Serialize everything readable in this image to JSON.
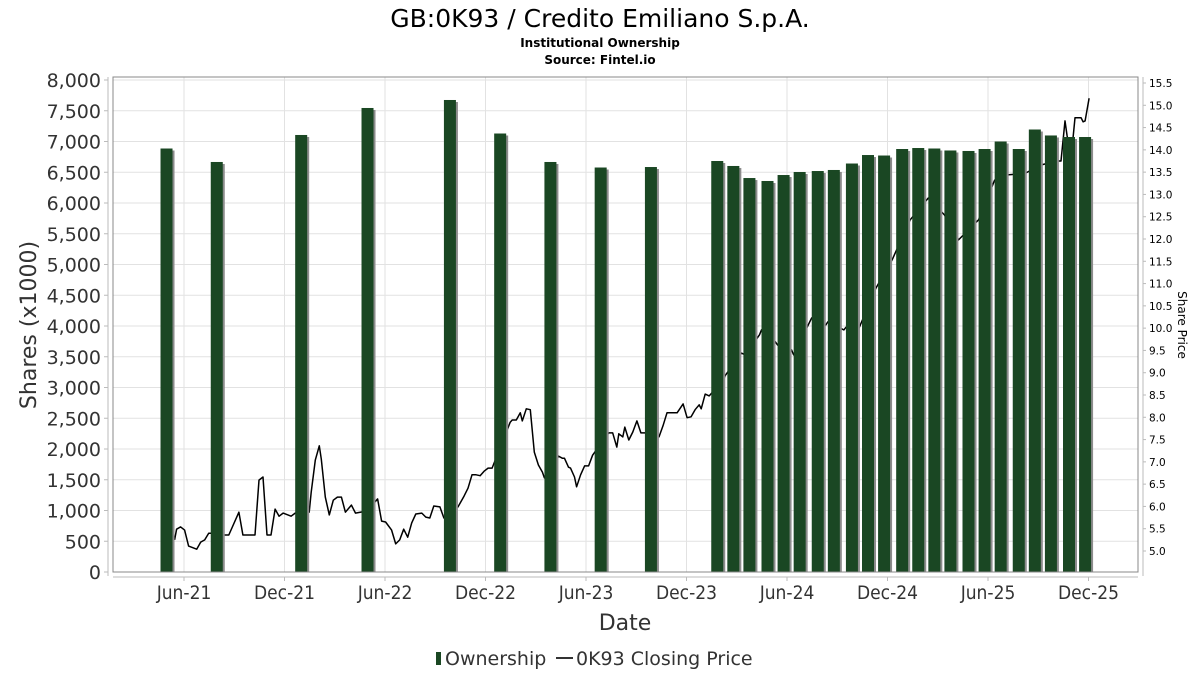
{
  "chart_data": {
    "type": "bar+line",
    "title": "GB:0K93 / Credito Emiliano S.p.A.",
    "subtitle": "Institutional Ownership",
    "source": "Source: Fintel.io",
    "xlabel": "Date",
    "ylabel": "Shares (x1000)",
    "y2label": "Share Price",
    "ylim": [
      0,
      8000
    ],
    "y2lim": [
      4.6,
      15.6
    ],
    "grid": true,
    "legend_position": "bottom",
    "x_ticks": [
      {
        "label": "Jun-21",
        "t": 2021.417
      },
      {
        "label": "Dec-21",
        "t": 2021.917
      },
      {
        "label": "Jun-22",
        "t": 2022.417
      },
      {
        "label": "Dec-22",
        "t": 2022.917
      },
      {
        "label": "Jun-23",
        "t": 2023.417
      },
      {
        "label": "Dec-23",
        "t": 2023.917
      },
      {
        "label": "Jun-24",
        "t": 2024.417
      },
      {
        "label": "Dec-24",
        "t": 2024.917
      },
      {
        "label": "Jun-25",
        "t": 2025.417
      },
      {
        "label": "Dec-25",
        "t": 2025.917
      }
    ],
    "x_range": [
      2020.77,
      2026.17
    ],
    "y_ticks": [
      {
        "label": "0",
        "v": 0
      },
      {
        "label": "500",
        "v": 500
      },
      {
        "label": "1,000",
        "v": 1000
      },
      {
        "label": "1,500",
        "v": 1500
      },
      {
        "label": "2,000",
        "v": 2000
      },
      {
        "label": "2,500",
        "v": 2500
      },
      {
        "label": "3,000",
        "v": 3000
      },
      {
        "label": "3,500",
        "v": 3500
      },
      {
        "label": "4,000",
        "v": 4000
      },
      {
        "label": "4,500",
        "v": 4500
      },
      {
        "label": "5,000",
        "v": 5000
      },
      {
        "label": "5,500",
        "v": 5500
      },
      {
        "label": "6,000",
        "v": 6000
      },
      {
        "label": "6,500",
        "v": 6500
      },
      {
        "label": "7,000",
        "v": 7000
      },
      {
        "label": "7,500",
        "v": 7500
      },
      {
        "label": "8,000",
        "v": 8000
      }
    ],
    "y2_ticks": [
      {
        "label": "5.0",
        "v": 5.0
      },
      {
        "label": "5.5",
        "v": 5.5
      },
      {
        "label": "6.0",
        "v": 6.0
      },
      {
        "label": "6.5",
        "v": 6.5
      },
      {
        "label": "7.0",
        "v": 7.0
      },
      {
        "label": "7.5",
        "v": 7.5
      },
      {
        "label": "8.0",
        "v": 8.0
      },
      {
        "label": "8.5",
        "v": 8.5
      },
      {
        "label": "9.0",
        "v": 9.0
      },
      {
        "label": "9.5",
        "v": 9.5
      },
      {
        "label": "10.0",
        "v": 10.0
      },
      {
        "label": "10.5",
        "v": 10.5
      },
      {
        "label": "11.0",
        "v": 11.0
      },
      {
        "label": "11.5",
        "v": 11.5
      },
      {
        "label": "12.0",
        "v": 12.0
      },
      {
        "label": "12.5",
        "v": 12.5
      },
      {
        "label": "13.0",
        "v": 13.0
      },
      {
        "label": "13.5",
        "v": 13.5
      },
      {
        "label": "14.0",
        "v": 14.0
      },
      {
        "label": "14.5",
        "v": 14.5
      },
      {
        "label": "15.0",
        "v": 15.0
      },
      {
        "label": "15.5",
        "v": 15.5
      }
    ],
    "series": [
      {
        "name": "Ownership",
        "type": "bar",
        "color": "#1a4723",
        "shadow_color": "#8c8c8c",
        "points": [
          {
            "t": 2021.33,
            "v": 6886
          },
          {
            "t": 2021.58,
            "v": 6667
          },
          {
            "t": 2022.0,
            "v": 7106
          },
          {
            "t": 2022.33,
            "v": 7545
          },
          {
            "t": 2022.74,
            "v": 7675
          },
          {
            "t": 2022.99,
            "v": 7130
          },
          {
            "t": 2023.24,
            "v": 6667
          },
          {
            "t": 2023.49,
            "v": 6577
          },
          {
            "t": 2023.74,
            "v": 6585
          },
          {
            "t": 2024.07,
            "v": 6683
          },
          {
            "t": 2024.15,
            "v": 6602
          },
          {
            "t": 2024.23,
            "v": 6406
          },
          {
            "t": 2024.32,
            "v": 6358
          },
          {
            "t": 2024.4,
            "v": 6455
          },
          {
            "t": 2024.48,
            "v": 6504
          },
          {
            "t": 2024.57,
            "v": 6520
          },
          {
            "t": 2024.65,
            "v": 6537
          },
          {
            "t": 2024.74,
            "v": 6642
          },
          {
            "t": 2024.82,
            "v": 6780
          },
          {
            "t": 2024.9,
            "v": 6772
          },
          {
            "t": 2024.99,
            "v": 6878
          },
          {
            "t": 2025.07,
            "v": 6894
          },
          {
            "t": 2025.15,
            "v": 6886
          },
          {
            "t": 2025.23,
            "v": 6854
          },
          {
            "t": 2025.32,
            "v": 6846
          },
          {
            "t": 2025.4,
            "v": 6878
          },
          {
            "t": 2025.48,
            "v": 7000
          },
          {
            "t": 2025.57,
            "v": 6878
          },
          {
            "t": 2025.65,
            "v": 7195
          },
          {
            "t": 2025.73,
            "v": 7098
          },
          {
            "t": 2025.82,
            "v": 7073
          },
          {
            "t": 2025.9,
            "v": 7073
          }
        ]
      },
      {
        "name": "0K93 Closing Price",
        "type": "line",
        "color": "#000000",
        "points": [
          {
            "t": 2021.37,
            "v": 5.25
          },
          {
            "t": 2021.38,
            "v": 5.49
          },
          {
            "t": 2021.4,
            "v": 5.54
          },
          {
            "t": 2021.42,
            "v": 5.47
          },
          {
            "t": 2021.44,
            "v": 5.11
          },
          {
            "t": 2021.48,
            "v": 5.04
          },
          {
            "t": 2021.5,
            "v": 5.2
          },
          {
            "t": 2021.52,
            "v": 5.25
          },
          {
            "t": 2021.54,
            "v": 5.4
          },
          {
            "t": 2021.56,
            "v": 5.4
          },
          {
            "t": 2021.62,
            "v": 5.36
          },
          {
            "t": 2021.64,
            "v": 5.36
          },
          {
            "t": 2021.69,
            "v": 5.87
          },
          {
            "t": 2021.71,
            "v": 5.36
          },
          {
            "t": 2021.77,
            "v": 5.36
          },
          {
            "t": 2021.79,
            "v": 6.59
          },
          {
            "t": 2021.81,
            "v": 6.66
          },
          {
            "t": 2021.83,
            "v": 5.36
          },
          {
            "t": 2021.85,
            "v": 5.36
          },
          {
            "t": 2021.87,
            "v": 5.94
          },
          {
            "t": 2021.89,
            "v": 5.78
          },
          {
            "t": 2021.91,
            "v": 5.85
          },
          {
            "t": 2021.95,
            "v": 5.78
          },
          {
            "t": 2021.97,
            "v": 5.85
          },
          {
            "t": 2022.04,
            "v": 5.87
          },
          {
            "t": 2022.05,
            "v": 6.32
          },
          {
            "t": 2022.07,
            "v": 7.04
          },
          {
            "t": 2022.09,
            "v": 7.36
          },
          {
            "t": 2022.1,
            "v": 7.06
          },
          {
            "t": 2022.12,
            "v": 6.21
          },
          {
            "t": 2022.14,
            "v": 5.81
          },
          {
            "t": 2022.16,
            "v": 6.14
          },
          {
            "t": 2022.18,
            "v": 6.21
          },
          {
            "t": 2022.2,
            "v": 6.21
          },
          {
            "t": 2022.22,
            "v": 5.87
          },
          {
            "t": 2022.25,
            "v": 6.03
          },
          {
            "t": 2022.27,
            "v": 5.85
          },
          {
            "t": 2022.33,
            "v": 5.9
          },
          {
            "t": 2022.38,
            "v": 6.17
          },
          {
            "t": 2022.4,
            "v": 5.67
          },
          {
            "t": 2022.42,
            "v": 5.65
          },
          {
            "t": 2022.45,
            "v": 5.47
          },
          {
            "t": 2022.47,
            "v": 5.16
          },
          {
            "t": 2022.49,
            "v": 5.25
          },
          {
            "t": 2022.51,
            "v": 5.49
          },
          {
            "t": 2022.53,
            "v": 5.31
          },
          {
            "t": 2022.55,
            "v": 5.63
          },
          {
            "t": 2022.57,
            "v": 5.83
          },
          {
            "t": 2022.6,
            "v": 5.85
          },
          {
            "t": 2022.62,
            "v": 5.76
          },
          {
            "t": 2022.64,
            "v": 5.74
          },
          {
            "t": 2022.66,
            "v": 6.01
          },
          {
            "t": 2022.69,
            "v": 5.99
          },
          {
            "t": 2022.71,
            "v": 5.74
          },
          {
            "t": 2022.78,
            "v": 5.99
          },
          {
            "t": 2022.81,
            "v": 6.23
          },
          {
            "t": 2022.83,
            "v": 6.41
          },
          {
            "t": 2022.85,
            "v": 6.71
          },
          {
            "t": 2022.87,
            "v": 6.71
          },
          {
            "t": 2022.89,
            "v": 6.69
          },
          {
            "t": 2022.91,
            "v": 6.79
          },
          {
            "t": 2022.93,
            "v": 6.86
          },
          {
            "t": 2022.95,
            "v": 6.86
          },
          {
            "t": 2023.04,
            "v": 7.89
          },
          {
            "t": 2023.05,
            "v": 7.94
          },
          {
            "t": 2023.07,
            "v": 7.94
          },
          {
            "t": 2023.09,
            "v": 8.1
          },
          {
            "t": 2023.1,
            "v": 7.92
          },
          {
            "t": 2023.12,
            "v": 8.19
          },
          {
            "t": 2023.14,
            "v": 8.17
          },
          {
            "t": 2023.16,
            "v": 7.22
          },
          {
            "t": 2023.18,
            "v": 6.93
          },
          {
            "t": 2023.2,
            "v": 6.77
          },
          {
            "t": 2023.21,
            "v": 6.64
          },
          {
            "t": 2023.28,
            "v": 7.13
          },
          {
            "t": 2023.3,
            "v": 7.08
          },
          {
            "t": 2023.31,
            "v": 7.08
          },
          {
            "t": 2023.33,
            "v": 6.88
          },
          {
            "t": 2023.34,
            "v": 6.86
          },
          {
            "t": 2023.36,
            "v": 6.66
          },
          {
            "t": 2023.37,
            "v": 6.44
          },
          {
            "t": 2023.39,
            "v": 6.71
          },
          {
            "t": 2023.41,
            "v": 6.91
          },
          {
            "t": 2023.43,
            "v": 6.91
          },
          {
            "t": 2023.45,
            "v": 7.15
          },
          {
            "t": 2023.53,
            "v": 7.65
          },
          {
            "t": 2023.55,
            "v": 7.65
          },
          {
            "t": 2023.57,
            "v": 7.33
          },
          {
            "t": 2023.58,
            "v": 7.63
          },
          {
            "t": 2023.6,
            "v": 7.56
          },
          {
            "t": 2023.61,
            "v": 7.78
          },
          {
            "t": 2023.63,
            "v": 7.49
          },
          {
            "t": 2023.65,
            "v": 7.67
          },
          {
            "t": 2023.67,
            "v": 7.92
          },
          {
            "t": 2023.69,
            "v": 7.65
          },
          {
            "t": 2023.71,
            "v": 7.65
          },
          {
            "t": 2023.78,
            "v": 7.56
          },
          {
            "t": 2023.8,
            "v": 7.81
          },
          {
            "t": 2023.82,
            "v": 8.1
          },
          {
            "t": 2023.83,
            "v": 8.1
          },
          {
            "t": 2023.85,
            "v": 8.1
          },
          {
            "t": 2023.87,
            "v": 8.1
          },
          {
            "t": 2023.9,
            "v": 8.3
          },
          {
            "t": 2023.92,
            "v": 7.99
          },
          {
            "t": 2023.94,
            "v": 8.01
          },
          {
            "t": 2023.96,
            "v": 8.17
          },
          {
            "t": 2023.98,
            "v": 8.28
          },
          {
            "t": 2023.99,
            "v": 8.19
          },
          {
            "t": 2024.01,
            "v": 8.52
          },
          {
            "t": 2024.03,
            "v": 8.48
          },
          {
            "t": 2024.1,
            "v": 8.83
          },
          {
            "t": 2024.11,
            "v": 8.94
          },
          {
            "t": 2024.19,
            "v": 9.44
          },
          {
            "t": 2024.21,
            "v": 9.4
          },
          {
            "t": 2024.28,
            "v": 9.85
          },
          {
            "t": 2024.29,
            "v": 9.96
          },
          {
            "t": 2024.36,
            "v": 9.69
          },
          {
            "t": 2024.37,
            "v": 9.62
          },
          {
            "t": 2024.44,
            "v": 9.51
          },
          {
            "t": 2024.45,
            "v": 9.4
          },
          {
            "t": 2024.53,
            "v": 10.14
          },
          {
            "t": 2024.54,
            "v": 10.23
          },
          {
            "t": 2024.61,
            "v": 10.07
          },
          {
            "t": 2024.62,
            "v": 10.14
          },
          {
            "t": 2024.7,
            "v": 9.96
          },
          {
            "t": 2024.71,
            "v": 10.02
          },
          {
            "t": 2024.77,
            "v": 9.95
          },
          {
            "t": 2024.86,
            "v": 10.9
          },
          {
            "t": 2024.94,
            "v": 11.53
          },
          {
            "t": 2025.03,
            "v": 12.43
          },
          {
            "t": 2025.12,
            "v": 12.92
          },
          {
            "t": 2025.2,
            "v": 12.54
          },
          {
            "t": 2025.27,
            "v": 11.98
          },
          {
            "t": 2025.37,
            "v": 12.43
          },
          {
            "t": 2025.45,
            "v": 13.32
          },
          {
            "t": 2025.52,
            "v": 13.44
          },
          {
            "t": 2025.6,
            "v": 13.47
          },
          {
            "t": 2025.68,
            "v": 13.66
          },
          {
            "t": 2025.76,
            "v": 13.75
          },
          {
            "t": 2025.78,
            "v": 13.75
          },
          {
            "t": 2025.8,
            "v": 14.65
          },
          {
            "t": 2025.81,
            "v": 14.33
          },
          {
            "t": 2025.83,
            "v": 13.8
          },
          {
            "t": 2025.85,
            "v": 14.72
          },
          {
            "t": 2025.88,
            "v": 14.72
          },
          {
            "t": 2025.89,
            "v": 14.63
          },
          {
            "t": 2025.9,
            "v": 14.65
          },
          {
            "t": 2025.92,
            "v": 15.16
          }
        ]
      }
    ]
  },
  "legend": {
    "ownership_label": "Ownership",
    "price_label": "0K93 Closing Price"
  }
}
